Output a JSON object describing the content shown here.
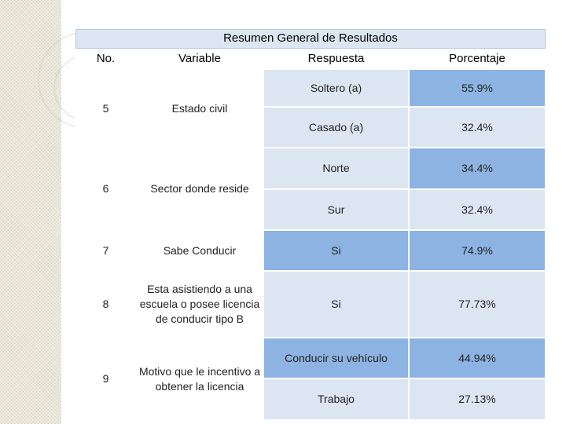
{
  "table": {
    "title": "Resumen General de Resultados",
    "headers": [
      "No.",
      "Variable",
      "Respuesta",
      "Porcentaje"
    ],
    "rows": [
      {
        "no": "5",
        "variable": "Estado civil",
        "responses": [
          {
            "respuesta": "Soltero (a)",
            "porcentaje": "55.9%"
          },
          {
            "respuesta": "Casado (a)",
            "porcentaje": "32.4%"
          }
        ]
      },
      {
        "no": "6",
        "variable": "Sector donde reside",
        "responses": [
          {
            "respuesta": "Norte",
            "porcentaje": "34.4%"
          },
          {
            "respuesta": "Sur",
            "porcentaje": "32.4%"
          }
        ]
      },
      {
        "no": "7",
        "variable": "Sabe Conducir",
        "responses": [
          {
            "respuesta": "Si",
            "porcentaje": "74.9%"
          }
        ]
      },
      {
        "no": "8",
        "variable": "Esta asistiendo a una escuela o posee licencia de conducir tipo B",
        "responses": [
          {
            "respuesta": "Si",
            "porcentaje": "77.73%"
          }
        ]
      },
      {
        "no": "9",
        "variable": "Motivo que le incentivo a obtener la licencia",
        "responses": [
          {
            "respuesta": "Conducir su vehículo",
            "porcentaje": "44.94%"
          },
          {
            "respuesta": "Trabajo",
            "porcentaje": "27.13%"
          }
        ]
      }
    ]
  }
}
